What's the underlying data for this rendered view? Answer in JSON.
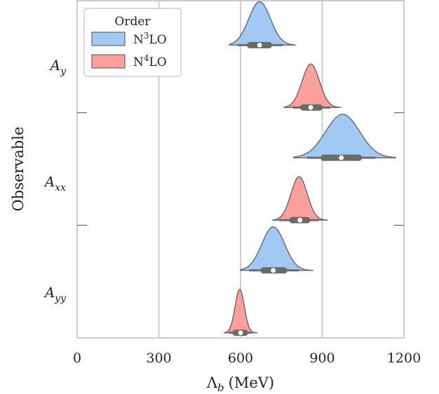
{
  "chart_data": {
    "type": "violin",
    "orientation": "horizontal",
    "split": true,
    "xlabel_main": "Λ",
    "xlabel_sub": "b",
    "xlabel_unit": "(MeV)",
    "ylabel": "Observable",
    "xlim": [
      0,
      1200
    ],
    "xticks": [
      "0",
      "300",
      "600",
      "900",
      "1200"
    ],
    "xgrid": [
      300,
      600,
      900
    ],
    "legend": {
      "title": "Order",
      "placement": "top-left",
      "entries": [
        {
          "name": "N³LO",
          "base": "N",
          "sup": "3",
          "tail": "LO",
          "color": "#a1c9f4"
        },
        {
          "name": "N⁴LO",
          "base": "N",
          "sup": "4",
          "tail": "LO",
          "color": "#ff9f9b"
        }
      ]
    },
    "categories": [
      {
        "base": "A",
        "sub": "y"
      },
      {
        "base": "A",
        "sub": "xx"
      },
      {
        "base": "A",
        "sub": "yy"
      }
    ],
    "series": [
      {
        "name": "N³LO",
        "color": "#a1c9f4",
        "distributions": [
          {
            "mean": 670,
            "sd": 40,
            "min": 560,
            "max": 800,
            "median": 670,
            "q1": 635,
            "q3": 705,
            "w_lo": 590,
            "w_hi": 755
          },
          {
            "mean": 975,
            "sd": 62,
            "min": 795,
            "max": 1170,
            "median": 970,
            "q1": 905,
            "q3": 1035,
            "w_lo": 845,
            "w_hi": 1095
          },
          {
            "mean": 720,
            "sd": 42,
            "min": 600,
            "max": 865,
            "median": 720,
            "q1": 685,
            "q3": 760,
            "w_lo": 632,
            "w_hi": 815
          }
        ]
      },
      {
        "name": "N⁴LO",
        "color": "#ff9f9b",
        "distributions": [
          {
            "mean": 858,
            "sd": 32,
            "min": 760,
            "max": 968,
            "median": 858,
            "q1": 830,
            "q3": 890,
            "w_lo": 792,
            "w_hi": 930
          },
          {
            "mean": 815,
            "sd": 30,
            "min": 718,
            "max": 918,
            "median": 818,
            "q1": 790,
            "q3": 845,
            "w_lo": 742,
            "w_hi": 888
          },
          {
            "mean": 597,
            "sd": 17,
            "min": 540,
            "max": 660,
            "median": 600,
            "q1": 582,
            "q3": 616,
            "w_lo": 558,
            "w_hi": 638
          }
        ]
      }
    ]
  }
}
